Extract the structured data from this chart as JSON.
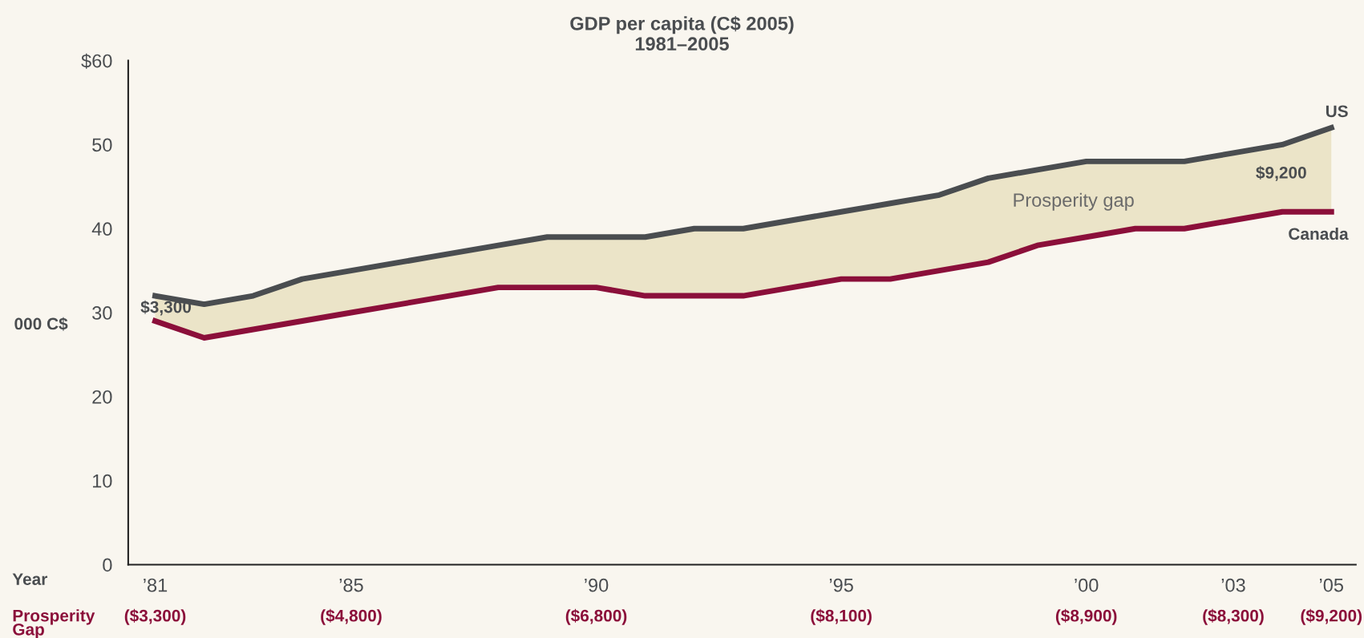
{
  "chart_data": {
    "type": "line",
    "title": "GDP per capita (C$ 2005)\n1981–2005",
    "ylabel": "000 C$",
    "x": [
      1981,
      1982,
      1983,
      1984,
      1985,
      1986,
      1987,
      1988,
      1989,
      1990,
      1991,
      1992,
      1993,
      1994,
      1995,
      1996,
      1997,
      1998,
      1999,
      2000,
      2001,
      2002,
      2003,
      2004,
      2005
    ],
    "series": [
      {
        "name": "US",
        "color": "#4a4d50",
        "values": [
          32,
          31,
          32,
          34,
          35,
          36,
          37,
          38,
          39,
          39,
          39,
          40,
          40,
          41,
          42,
          43,
          44,
          46,
          47,
          48,
          48,
          48,
          49,
          50,
          52
        ],
        "lower": [
          29,
          27,
          28,
          29,
          30,
          31,
          32,
          33,
          33,
          33,
          32,
          32,
          32,
          33,
          34,
          34,
          35,
          36,
          38,
          39,
          40,
          40,
          41,
          42,
          42
        ],
        "upper": [
          32,
          31,
          32,
          34,
          35,
          36,
          37,
          38,
          39,
          39,
          39,
          40,
          40,
          41,
          42,
          43,
          44,
          46,
          47,
          48,
          48,
          48,
          49,
          50,
          52
        ]
      },
      {
        "name": "Canada",
        "color": "#8b0f3a",
        "values": [
          29,
          27,
          28,
          29,
          30,
          31,
          32,
          33,
          33,
          33,
          32,
          32,
          32,
          33,
          34,
          34,
          35,
          36,
          38,
          39,
          40,
          40,
          41,
          42,
          42
        ]
      }
    ],
    "xlim": [
      1980.45,
      2005.5
    ],
    "xticks": [
      {
        "value": 1981,
        "label": "’81"
      },
      {
        "value": 1985,
        "label": "’85"
      },
      {
        "value": 1990,
        "label": "’90"
      },
      {
        "value": 1995,
        "label": "’95"
      },
      {
        "value": 2000,
        "label": "’00"
      },
      {
        "value": 2003,
        "label": "’03"
      },
      {
        "value": 2005,
        "label": "’05"
      }
    ],
    "ylim": [
      0,
      60
    ],
    "yticks": [
      0,
      10,
      20,
      30,
      40,
      50,
      {
        "value": 60,
        "label": "$60"
      }
    ],
    "annotations": [
      {
        "text": "$3,300",
        "x": 1981,
        "y": 30.5
      },
      {
        "text": "$9,200",
        "x": 2005,
        "y": 46.5
      },
      "Prosperity gap",
      "Year",
      "Prosperity\nGap",
      "($3,300)",
      "($4,800)",
      "($6,800)",
      "($8,100)",
      "($8,900)",
      "($8,300)",
      "($9,200)"
    ],
    "grid": false,
    "legend": false,
    "marker": "none",
    "line_style": "solid"
  }
}
